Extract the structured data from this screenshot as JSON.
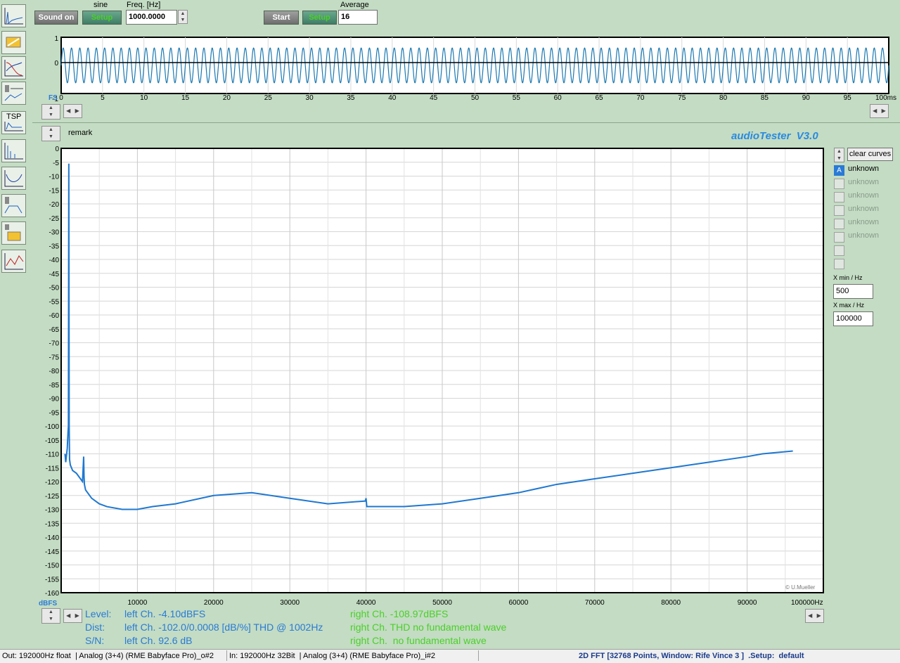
{
  "toolbar": {
    "sound_on": "Sound on",
    "generator_mode": "sine",
    "gen_setup": "Setup",
    "freq_label": "Freq. [Hz]",
    "freq_value": "1000.0000",
    "start": "Start",
    "avg_setup": "Setup",
    "average_label": "Average",
    "average_value": "16",
    "tsp_label": "TSP"
  },
  "scope": {
    "y_ticks": [
      "1",
      "0",
      "-1"
    ],
    "x_ticks": [
      "0",
      "5",
      "10",
      "15",
      "20",
      "25",
      "30",
      "35",
      "40",
      "45",
      "50",
      "55",
      "60",
      "65",
      "70",
      "75",
      "80",
      "85",
      "90",
      "95"
    ],
    "x_end_label": "100ms",
    "fs_label": "FS"
  },
  "fft": {
    "remark": "remark",
    "brand": "audioTester  V3.0",
    "copyright": "© U.Mueller",
    "y_unit": "dBFS",
    "x_end_label": "100000Hz"
  },
  "chart_data": [
    {
      "type": "line",
      "xlabel": "",
      "ylabel": "",
      "xlim": [
        0,
        100
      ],
      "ylim": [
        -1,
        1
      ],
      "series": [
        {
          "name": "",
          "x": [
            0,
            100
          ],
          "frequency_khz": 1.0,
          "amplitude": 0.62
        }
      ]
    },
    {
      "type": "line",
      "xlabel": "",
      "ylabel": "dBFS",
      "xlim": [
        0,
        100000
      ],
      "ylim": [
        -160,
        0
      ],
      "y_ticks": [
        0,
        -5,
        -10,
        -15,
        -20,
        -25,
        -30,
        -35,
        -40,
        -45,
        -50,
        -55,
        -60,
        -65,
        -70,
        -75,
        -80,
        -85,
        -90,
        -95,
        -100,
        -105,
        -110,
        -115,
        -120,
        -125,
        -130,
        -135,
        -140,
        -145,
        -150,
        -155,
        -160
      ],
      "x_ticks": [
        10000,
        20000,
        30000,
        40000,
        50000,
        60000,
        70000,
        80000,
        90000
      ],
      "grid": true,
      "series": [
        {
          "name": "unknown",
          "x": [
            500,
            600,
            800,
            900,
            950,
            1002,
            1050,
            1100,
            1200,
            1500,
            2000,
            2800,
            2950,
            3000,
            3050,
            3200,
            4000,
            5000,
            6000,
            8000,
            10000,
            12000,
            15000,
            20000,
            25000,
            30000,
            35000,
            39900,
            40000,
            40100,
            45000,
            50000,
            55000,
            60000,
            65000,
            70000,
            75000,
            80000,
            85000,
            90000,
            92000,
            96000
          ],
          "y": [
            -110,
            -113,
            -108,
            -102,
            -100,
            -5.5,
            -100,
            -112,
            -114,
            -116,
            -117,
            -120,
            -111,
            -118,
            -121,
            -123,
            -126,
            -128,
            -129,
            -130,
            -130,
            -129,
            -128,
            -125,
            -124,
            -126,
            -128,
            -127,
            -126,
            -129,
            -129,
            -128,
            -126,
            -124,
            -121,
            -119,
            -117,
            -115,
            -113,
            -111,
            -110,
            -109
          ]
        }
      ]
    }
  ],
  "legend": {
    "clear_curves": "clear curves",
    "active_marker": "A",
    "items": [
      "unknown",
      "unknown",
      "unknown",
      "unknown",
      "unknown",
      "unknown"
    ],
    "xmin_label": "X min / Hz",
    "xmin_value": "500",
    "xmax_label": "X max / Hz",
    "xmax_value": "100000"
  },
  "readout": {
    "level_label": "Level:",
    "dist_label": "Dist:",
    "sn_label": "S/N:",
    "left_level": "left Ch. -4.10dBFS",
    "left_dist": "left Ch. -102.0/0.0008 [dB/%] THD @ 1002Hz",
    "left_sn": "left Ch. 92.6 dB",
    "right_level": "right Ch. -108.97dBFS",
    "right_dist": "right Ch. THD no fundamental wave",
    "right_sn": "right Ch.  no fundamental wave"
  },
  "status": {
    "out": "Out: 192000Hz float  | Analog (3+4) (RME Babyface Pro)_o#2",
    "in": "In: 192000Hz 32Bit  | Analog (3+4) (RME Babyface Pro)_i#2",
    "mode": "2D FFT [32768 Points, Window: Rife Vince 3 ]  .Setup:  default"
  },
  "colors": {
    "trace": "#1f78d1",
    "scope_trace": "#1a78b0",
    "background": "#c3dcc3"
  }
}
